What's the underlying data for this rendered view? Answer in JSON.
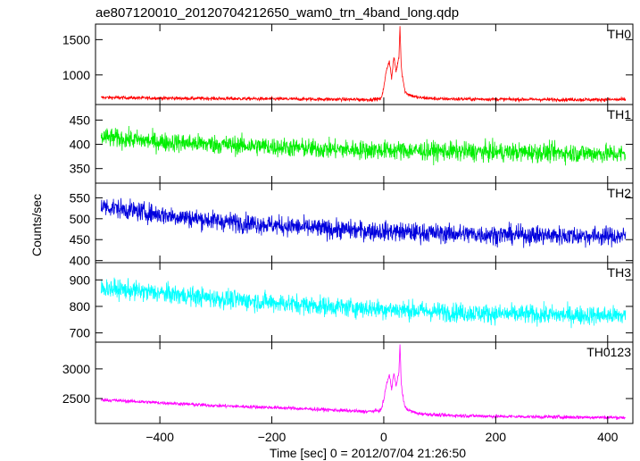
{
  "chart_data": {
    "type": "line",
    "title": "ae807120010_20120704212650_wam0_trn_4band_long.qdp",
    "xlabel": "Time [sec] 0 = 2012/07/04 21:26:50",
    "ylabel": "Counts/sec",
    "xlim": [
      -515,
      445
    ],
    "xticks": [
      -400,
      -200,
      0,
      200,
      400
    ],
    "panels": [
      {
        "name": "TH0",
        "color": "#ff0000",
        "ylim": [
          580,
          1720
        ],
        "yticks": [
          1000,
          1500
        ],
        "series": {
          "x": [
            -505,
            -400,
            -300,
            -200,
            -100,
            -30,
            -5,
            0,
            5,
            10,
            14,
            18,
            22,
            27,
            29,
            31,
            33,
            38,
            45,
            60,
            100,
            200,
            300,
            430
          ],
          "y": [
            680,
            670,
            665,
            660,
            655,
            650,
            660,
            820,
            1080,
            1200,
            950,
            1250,
            1050,
            1250,
            1700,
            1150,
            1000,
            760,
            720,
            680,
            660,
            655,
            650,
            650
          ]
        }
      },
      {
        "name": "TH1",
        "color": "#00ee00",
        "ylim": [
          320,
          482
        ],
        "yticks": [
          350,
          400,
          450
        ],
        "series": {
          "x": [
            -505,
            -400,
            -300,
            -200,
            -100,
            0,
            100,
            200,
            300,
            430
          ],
          "y": [
            415,
            405,
            400,
            395,
            390,
            388,
            386,
            384,
            383,
            380
          ]
        }
      },
      {
        "name": "TH2",
        "color": "#0000dd",
        "ylim": [
          395,
          585
        ],
        "yticks": [
          400,
          450,
          500,
          550
        ],
        "series": {
          "x": [
            -505,
            -400,
            -300,
            -200,
            -100,
            0,
            100,
            200,
            300,
            430
          ],
          "y": [
            530,
            510,
            495,
            485,
            475,
            470,
            465,
            462,
            460,
            458
          ]
        }
      },
      {
        "name": "TH3",
        "color": "#00ffff",
        "ylim": [
          665,
          965
        ],
        "yticks": [
          700,
          800,
          900
        ],
        "series": {
          "x": [
            -505,
            -400,
            -300,
            -200,
            -100,
            0,
            100,
            200,
            300,
            430
          ],
          "y": [
            870,
            850,
            830,
            815,
            800,
            790,
            780,
            772,
            768,
            765
          ]
        }
      },
      {
        "name": "TH0123",
        "color": "#ff00ff",
        "ylim": [
          2080,
          3450
        ],
        "yticks": [
          2500,
          3000
        ],
        "series": {
          "x": [
            -505,
            -400,
            -300,
            -200,
            -100,
            -30,
            -5,
            0,
            5,
            10,
            14,
            18,
            22,
            27,
            29,
            31,
            33,
            38,
            45,
            60,
            100,
            200,
            300,
            430
          ],
          "y": [
            2480,
            2430,
            2380,
            2350,
            2310,
            2280,
            2300,
            2480,
            2750,
            2900,
            2650,
            2950,
            2700,
            2950,
            3400,
            2800,
            2600,
            2350,
            2300,
            2250,
            2220,
            2200,
            2190,
            2180
          ]
        }
      }
    ]
  }
}
